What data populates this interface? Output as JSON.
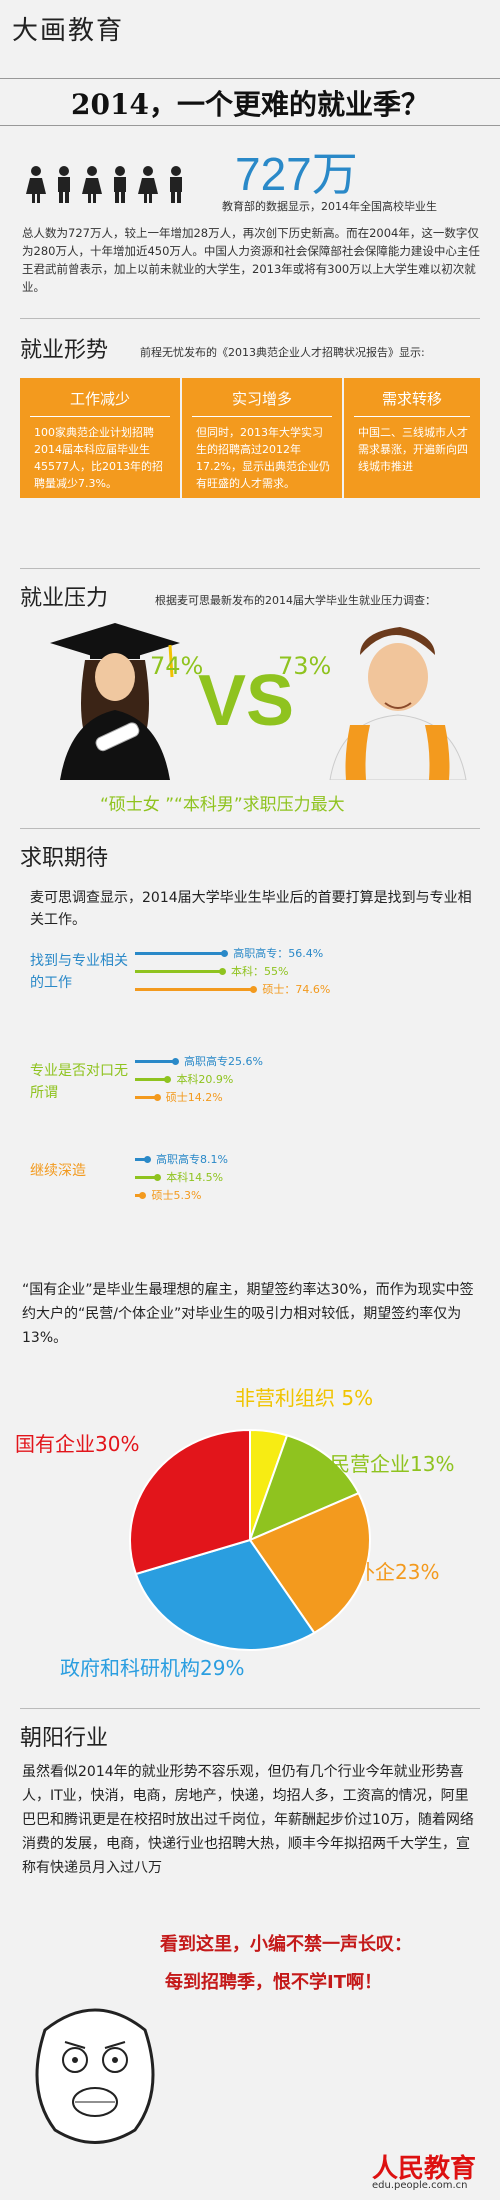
{
  "brand": "大画教育",
  "headline": "2014，一个更难的就业季？",
  "intro": {
    "number": "727万",
    "small": "教育部的数据显示，2014年全国高校毕业生",
    "body": "总人数为727万人，较上一年增加28万人，再次创下历史新高。而在2004年，这一数字仅为280万人，十年增加近450万人。中国人力资源和社会保障部社会保障能力建设中心主任王君武前曾表示，加上以前未就业的大学生，2013年或将有300万以上大学生难以初次就业。"
  },
  "situation": {
    "title": "就业形势",
    "note": "前程无忧发布的《2013典范企业人才招聘状况报告》显示:",
    "boxes": [
      {
        "title": "工作减少",
        "body": "100家典范企业计划招聘2014届本科应届毕业生45577人，比2013年的招聘量减少7.3%。"
      },
      {
        "title": "实习增多",
        "body": "但同时，2013年大学实习生的招聘高过2012年17.2%，显示出典范企业仍有旺盛的人才需求。"
      },
      {
        "title": "需求转移",
        "body": "中国二、三线城市人才需求暴涨，开遍新向四线城市推进"
      }
    ]
  },
  "pressure": {
    "title": "就业压力",
    "note": "根据麦可思最新发布的2014届大学毕业生就业压力调查：",
    "left_pct": "74%",
    "right_pct": "73%",
    "vs": "VS",
    "caption": "“硕士女 ”“本科男”求职压力最大"
  },
  "expectation": {
    "title": "求职期待",
    "intro": "麦可思调查显示，2014届大学毕业生毕业后的首要打算是找到与专业相关工作。",
    "groups": [
      {
        "label": "找到与专业相关的工作",
        "color": "#2a89c8",
        "bars": [
          {
            "label": "高职高专：56.4%",
            "value": 56.4,
            "color": "#2a89c8"
          },
          {
            "label": "本科：55%",
            "value": 55,
            "color": "#8fc31f"
          },
          {
            "label": "硕士：74.6%",
            "value": 74.6,
            "color": "#f39a1e"
          }
        ]
      },
      {
        "label": "专业是否对口无所谓",
        "color": "#8fc31f",
        "bars": [
          {
            "label": "高职高专25.6%",
            "value": 25.6,
            "color": "#2a89c8"
          },
          {
            "label": "本科20.9%",
            "value": 20.9,
            "color": "#8fc31f"
          },
          {
            "label": "硕士14.2%",
            "value": 14.2,
            "color": "#f39a1e"
          }
        ]
      },
      {
        "label": "继续深造",
        "color": "#f39a1e",
        "bars": [
          {
            "label": "高职高专8.1%",
            "value": 8.1,
            "color": "#2a89c8"
          },
          {
            "label": "本科14.5%",
            "value": 14.5,
            "color": "#8fc31f"
          },
          {
            "label": "硕士5.3%",
            "value": 5.3,
            "color": "#f39a1e"
          }
        ]
      }
    ]
  },
  "quote": "“国有企业”是毕业生最理想的雇主，期望签约率达30%，而作为现实中签约大户的“民营/个体企业”对毕业生的吸引力相对较低，期望签约率仅为13%。",
  "chart_data": {
    "type": "pie",
    "slices": [
      {
        "label": "非营利组织 5%",
        "value": 5,
        "color": "#f7ec13"
      },
      {
        "label": "民营企业13%",
        "value": 13,
        "color": "#8fc31f"
      },
      {
        "label": "外企23%",
        "value": 23,
        "color": "#f39a1e"
      },
      {
        "label": "政府和科研机构29%",
        "value": 29,
        "color": "#2a9ee0"
      },
      {
        "label": "国有企业30%",
        "value": 30,
        "color": "#e2151b"
      }
    ]
  },
  "sunrise": {
    "title": "朝阳行业",
    "body": "虽然看似2014年的就业形势不容乐观，但仍有几个行业今年就业形势喜人，IT业，快消，电商，房地产，快递，均招人多，工资高的情况，阿里巴巴和腾讯更是在校招时放出过千岗位，年薪酬起步价过10万，随着网络消费的发展，电商，快递行业也招聘大热，顺丰今年拟招两千大学生，宣称有快递员月入过八万",
    "exclaim1": "看到这里，小编不禁一声长叹：",
    "exclaim2": "每到招聘季，恨不学IT啊！"
  },
  "footer": {
    "logo": "人民教育",
    "url": "edu.people.com.cn"
  },
  "colors": {
    "blue": "#2a89c8",
    "green": "#8fc31f",
    "orange": "#f39a1e",
    "red": "#e2151b"
  }
}
